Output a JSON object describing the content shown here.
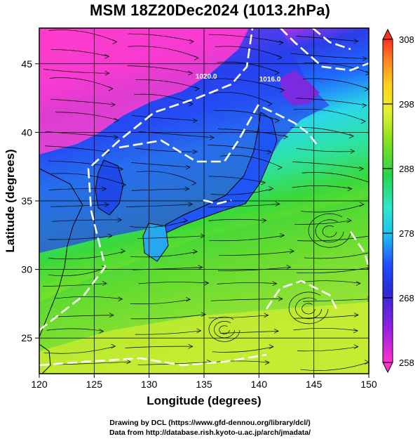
{
  "title": "MSM 18Z20Dec2024 (1013.2hPa)",
  "credit_line1": "Drawing by DCL (https://www.gfd-dennou.org/library/dcl/)",
  "credit_line2": "Data from http://database.rish.kyoto-u.ac.jp/arch/jmadata/",
  "map": {
    "xlabel": "Longitude (degrees)",
    "ylabel": "Latitude  (degrees)",
    "xlim": [
      120,
      150
    ],
    "ylim": [
      22.4,
      47.6
    ],
    "xticks": [
      120,
      125,
      130,
      135,
      140,
      145,
      150
    ],
    "yticks": [
      25,
      30,
      35,
      40,
      45
    ],
    "contours": [
      {
        "label": "1020.0",
        "lon": 135.2,
        "lat": 43.9
      },
      {
        "label": "1016.0",
        "lon": 141.0,
        "lat": 43.7
      }
    ]
  },
  "colorbar": {
    "min": 258,
    "max": 308,
    "ticks": [
      258,
      268,
      278,
      288,
      298,
      308
    ],
    "colors": {
      "magenta": "#ff3ec8",
      "purple": "#8a2be2",
      "blue": "#1b3dff",
      "cyan": "#2fe0d8",
      "green": "#2ed04a",
      "lime": "#9be020",
      "yellow": "#ffff33",
      "orange": "#ffa020",
      "red": "#ff3020"
    }
  }
}
